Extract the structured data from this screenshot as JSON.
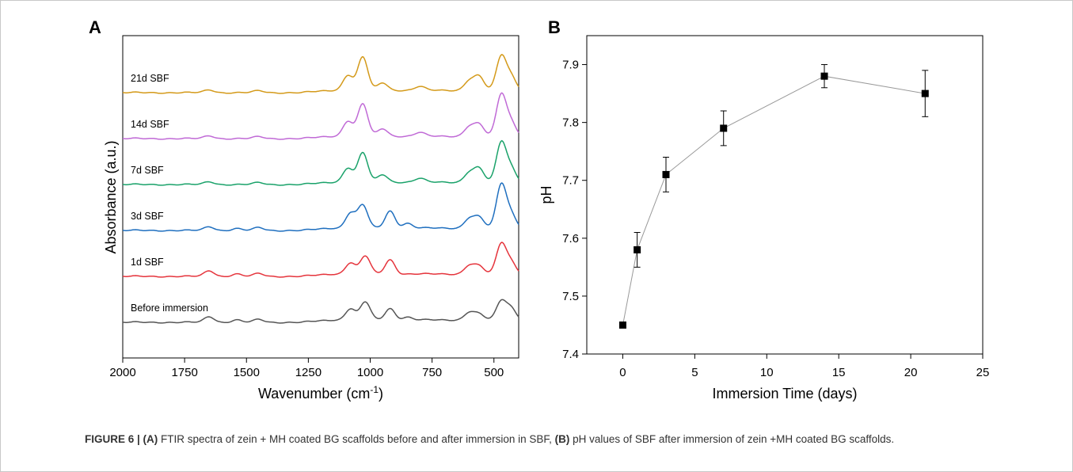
{
  "chart_data": [
    {
      "type": "line",
      "panel_label": "A",
      "xlabel": "Wavenumber (cm",
      "xlabel_sup": "-1",
      "xlabel_end": ")",
      "ylabel": "Absorbance (a.u.)",
      "xlim": [
        2000,
        400
      ],
      "x_reversed": true,
      "xticks": [
        2000,
        1750,
        1500,
        1250,
        1000,
        750,
        500
      ],
      "series": [
        {
          "name": "Before immersion",
          "color": "#555555",
          "peaks": [
            [
              1650,
              0.6
            ],
            [
              1540,
              0.25
            ],
            [
              1450,
              0.3
            ],
            [
              1080,
              1.2
            ],
            [
              1020,
              1.9
            ],
            [
              920,
              1.2
            ],
            [
              850,
              0.3
            ],
            [
              600,
              0.8
            ],
            [
              560,
              0.6
            ],
            [
              470,
              2.0
            ],
            [
              430,
              1.2
            ]
          ]
        },
        {
          "name": "1d SBF",
          "color": "#e5343c",
          "peaks": [
            [
              1650,
              0.6
            ],
            [
              1540,
              0.25
            ],
            [
              1450,
              0.3
            ],
            [
              1080,
              1.2
            ],
            [
              1020,
              1.9
            ],
            [
              920,
              1.5
            ],
            [
              600,
              0.9
            ],
            [
              560,
              0.8
            ],
            [
              470,
              3.2
            ],
            [
              430,
              1.2
            ]
          ]
        },
        {
          "name": "3d SBF",
          "color": "#1f6fbf",
          "peaks": [
            [
              1650,
              0.4
            ],
            [
              1540,
              0.2
            ],
            [
              1450,
              0.3
            ],
            [
              1080,
              1.6
            ],
            [
              1030,
              2.4
            ],
            [
              920,
              1.8
            ],
            [
              850,
              0.5
            ],
            [
              600,
              1.0
            ],
            [
              560,
              1.1
            ],
            [
              470,
              4.6
            ],
            [
              430,
              1.4
            ]
          ]
        },
        {
          "name": "7d SBF",
          "color": "#1aa26a",
          "peaks": [
            [
              1650,
              0.3
            ],
            [
              1450,
              0.2
            ],
            [
              1090,
              1.5
            ],
            [
              1030,
              3.1
            ],
            [
              950,
              0.8
            ],
            [
              800,
              0.4
            ],
            [
              600,
              1.0
            ],
            [
              560,
              1.4
            ],
            [
              470,
              4.2
            ],
            [
              430,
              1.4
            ]
          ]
        },
        {
          "name": "14d SBF",
          "color": "#c06ad6",
          "peaks": [
            [
              1650,
              0.3
            ],
            [
              1450,
              0.2
            ],
            [
              1090,
              1.6
            ],
            [
              1030,
              3.4
            ],
            [
              950,
              0.8
            ],
            [
              800,
              0.4
            ],
            [
              600,
              1.0
            ],
            [
              560,
              1.2
            ],
            [
              470,
              4.4
            ],
            [
              430,
              1.4
            ]
          ]
        },
        {
          "name": "21d SBF",
          "color": "#d49a1a",
          "peaks": [
            [
              1650,
              0.3
            ],
            [
              1450,
              0.2
            ],
            [
              1090,
              1.6
            ],
            [
              1030,
              3.5
            ],
            [
              950,
              0.8
            ],
            [
              800,
              0.4
            ],
            [
              600,
              1.0
            ],
            [
              560,
              1.4
            ],
            [
              470,
              3.6
            ],
            [
              430,
              1.4
            ]
          ]
        }
      ]
    },
    {
      "type": "scatter",
      "panel_label": "B",
      "xlabel": "Immersion Time (days)",
      "ylabel": "pH",
      "xlim": [
        -2.5,
        25
      ],
      "ylim": [
        7.4,
        7.95
      ],
      "xticks": [
        0,
        5,
        10,
        15,
        20,
        25
      ],
      "yticks": [
        7.4,
        7.5,
        7.6,
        7.7,
        7.8,
        7.9
      ],
      "points": [
        {
          "x": 0,
          "y": 7.45,
          "err": 0.0
        },
        {
          "x": 1,
          "y": 7.58,
          "err": 0.03
        },
        {
          "x": 3,
          "y": 7.71,
          "err": 0.03
        },
        {
          "x": 7,
          "y": 7.79,
          "err": 0.03
        },
        {
          "x": 14,
          "y": 7.88,
          "err": 0.02
        },
        {
          "x": 21,
          "y": 7.85,
          "err": 0.04
        }
      ],
      "marker_color": "#000000",
      "line_color": "#999999"
    }
  ],
  "caption": {
    "lead": "FIGURE 6 | (A)",
    "part1": " FTIR spectra of zein + MH coated BG scaffolds before and after immersion in SBF, ",
    "b_label": "(B)",
    "part2": " pH values of SBF after immersion of zein +MH coated BG scaffolds."
  }
}
